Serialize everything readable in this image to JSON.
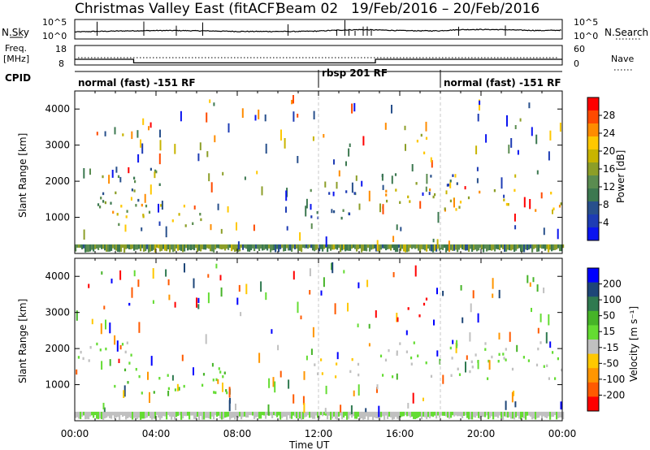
{
  "header": {
    "station": "Christmas Valley East (fitACF)",
    "beam": "Beam 02",
    "date_range": "19/Feb/2016 – 20/Feb/2016"
  },
  "noise_panel": {
    "left_label": "N.Sky",
    "right_label": "N.Search",
    "left_ticks": [
      "10^5",
      "10^0"
    ],
    "right_ticks": [
      "10^5",
      "10^0"
    ]
  },
  "freq_panel": {
    "left_label_1": "Freq.",
    "left_label_2": "[MHz]",
    "left_ticks": [
      "18",
      "8"
    ],
    "right_label": "Nave",
    "right_ticks": [
      "60",
      "0"
    ]
  },
  "cpid_panel": {
    "label": "CPID",
    "segments": [
      {
        "start": 0,
        "end": 12,
        "text": "normal (fast) -151 RF"
      },
      {
        "start": 12,
        "end": 18,
        "text": "rbsp 201 RF"
      },
      {
        "start": 18,
        "end": 24,
        "text": "normal (fast) -151 RF"
      }
    ]
  },
  "axes": {
    "x_ticks": [
      "00:00",
      "04:00",
      "08:00",
      "12:00",
      "16:00",
      "20:00",
      "00:00"
    ],
    "x_label": "Time UT",
    "y_ticks": [
      "1000",
      "2000",
      "3000",
      "4000"
    ],
    "y_label": "Slant Range [km]"
  },
  "colorbars": {
    "power": {
      "label": "Power [dB]",
      "ticks": [
        "28",
        "24",
        "20",
        "16",
        "12",
        "8",
        "4"
      ],
      "colors": [
        "#ff0000",
        "#ff4a00",
        "#ff8c00",
        "#ffc800",
        "#c8b400",
        "#8c9e28",
        "#5a8c50",
        "#3c7850",
        "#28508c",
        "#1e3cb4",
        "#0a14f0"
      ]
    },
    "velocity": {
      "label": "Velocity [m s⁻¹]",
      "ticks": [
        "200",
        "100",
        "50",
        "15",
        "-15",
        "-50",
        "-100",
        "-200"
      ],
      "colors": [
        "#0000ff",
        "#1e4678",
        "#2f7a50",
        "#46b428",
        "#64dc32",
        "#c0c0c0",
        "#ffc800",
        "#ff9600",
        "#ff5a00",
        "#ff0000"
      ]
    }
  },
  "chart_data": [
    {
      "type": "line",
      "title": "Christmas Valley East (fitACF)",
      "series": [
        {
          "name": "N.Sky",
          "x": [
            0,
            1,
            2,
            3,
            4,
            5,
            6,
            7,
            8,
            9,
            10,
            11,
            12,
            13,
            14,
            15,
            16,
            17,
            18,
            19,
            20,
            21,
            22,
            23,
            24
          ],
          "y": [
            20,
            30,
            40,
            50,
            60,
            60,
            50,
            40,
            30,
            30,
            30,
            30,
            40,
            80,
            120,
            90,
            60,
            50,
            50,
            120,
            140,
            120,
            80,
            60,
            80
          ]
        }
      ],
      "xlim": [
        0,
        24
      ]
    },
    {
      "type": "line",
      "series": [
        {
          "name": "Freq",
          "x": [
            0,
            2.9,
            2.9,
            14.8,
            14.8,
            24
          ],
          "y": [
            10.5,
            10.5,
            8.3,
            8.3,
            10.5,
            10.5
          ]
        }
      ],
      "xlabel": "",
      "ylabel": "Freq. [MHz]",
      "ylim": [
        8,
        18
      ],
      "xlim": [
        0,
        24
      ]
    },
    {
      "type": "heatmap",
      "xlabel": "Time UT",
      "ylabel": "Slant Range [km]",
      "xlim": [
        0,
        24
      ],
      "ylim": [
        0,
        4500
      ],
      "colorbar_label": "Power [dB]",
      "colorbar_range": [
        0,
        32
      ],
      "regions": [
        {
          "t0": 0.1,
          "t1": 3.2,
          "r0": 1300,
          "r1": 2200,
          "level": 12
        },
        {
          "t0": 1.8,
          "t1": 7.6,
          "r0": 800,
          "r1": 1400,
          "level": 18
        },
        {
          "t0": 2.3,
          "t1": 2.7,
          "r0": 3000,
          "r1": 3350,
          "level": 22
        },
        {
          "t0": 3.2,
          "t1": 4.2,
          "r0": 1800,
          "r1": 2600,
          "level": 10
        },
        {
          "t0": 11.5,
          "t1": 14.0,
          "r0": 1000,
          "r1": 1900,
          "level": 9
        },
        {
          "t0": 15.0,
          "t1": 24.0,
          "r0": 1200,
          "r1": 1800,
          "level": 20
        },
        {
          "t0": 15.1,
          "t1": 19.0,
          "r0": 1900,
          "r1": 2300,
          "level": 9
        },
        {
          "t0": 16.3,
          "t1": 17.4,
          "r0": 2800,
          "r1": 3400,
          "level": 18
        }
      ]
    },
    {
      "type": "heatmap",
      "xlabel": "Time UT",
      "ylabel": "Slant Range [km]",
      "xlim": [
        0,
        24
      ],
      "ylim": [
        0,
        4500
      ],
      "colorbar_label": "Velocity [m s⁻¹]",
      "colorbar_range": [
        -200,
        200
      ],
      "regions": [
        {
          "t0": 0.1,
          "t1": 3.2,
          "r0": 1400,
          "r1": 2200,
          "level": 0
        },
        {
          "t0": 1.8,
          "t1": 7.6,
          "r0": 800,
          "r1": 1500,
          "level": 30
        },
        {
          "t0": 2.3,
          "t1": 2.7,
          "r0": 3000,
          "r1": 3400,
          "level": 200
        },
        {
          "t0": 11.5,
          "t1": 14.0,
          "r0": 1200,
          "r1": 1900,
          "level": -50
        },
        {
          "t0": 15.0,
          "t1": 24.0,
          "r0": 1200,
          "r1": 2200,
          "level": 0
        },
        {
          "t0": 16.3,
          "t1": 17.4,
          "r0": 2900,
          "r1": 3500,
          "level": -200
        }
      ]
    }
  ]
}
